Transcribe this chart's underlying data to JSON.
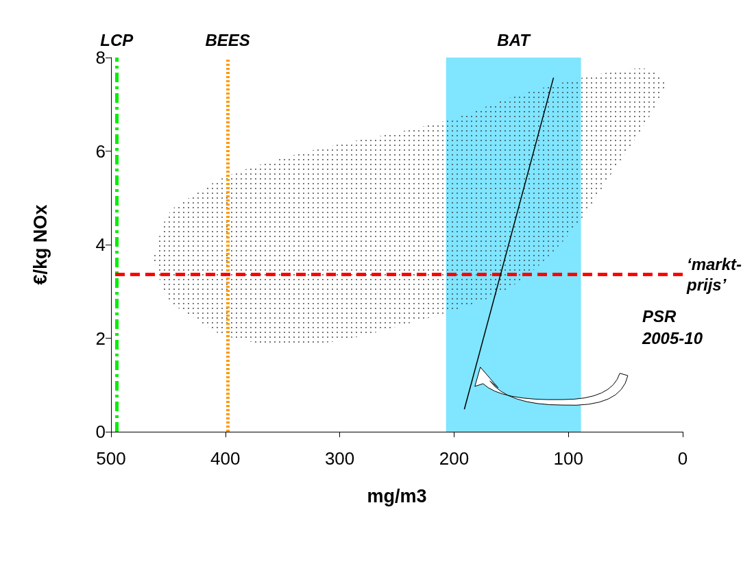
{
  "chart_data": {
    "type": "line",
    "xlabel": "mg/m3",
    "ylabel": "€/kg NOx",
    "x": [
      191,
      113
    ],
    "series": [
      {
        "color": "#000000",
        "values": [
          0.48,
          7.57
        ]
      },
      {
        "type": "area",
        "color": "#333333",
        "x": [
          463,
          450,
          425,
          400,
          350,
          300,
          250,
          200,
          150,
          100,
          60,
          30,
          14
        ],
        "values": [
          null,
          null,
          null,
          null,
          null,
          null,
          null,
          null,
          null,
          null,
          null,
          null,
          null
        ],
        "lower": [
          3.7,
          2.85,
          2.4,
          2.05,
          1.85,
          1.95,
          2.25,
          2.6,
          3.1,
          4.2,
          5.6,
          6.7,
          7.45
        ],
        "upper": [
          3.7,
          4.65,
          5.1,
          5.45,
          5.85,
          6.15,
          6.4,
          6.7,
          7.15,
          7.5,
          7.7,
          7.75,
          7.45
        ]
      }
    ],
    "marker": "none",
    "xlim": [
      500,
      0
    ],
    "xticks": [
      500,
      400,
      300,
      200,
      100,
      0
    ],
    "ylim": [
      0,
      8
    ],
    "yticks": [
      0,
      2,
      4,
      6,
      8
    ],
    "grid": false,
    "ref_lines": [
      {
        "axis": "x",
        "value": 495,
        "label": "LCP",
        "color": "#00ee00",
        "line_style": "dashdot"
      },
      {
        "axis": "x",
        "value": 398,
        "label": "BEES",
        "color": "#ff9900",
        "line_style": "dotted"
      },
      {
        "axis": "y",
        "value": 3.36,
        "label": "‘markt-\nprijs’",
        "color": "#ff0000",
        "line_style": "dashed"
      }
    ],
    "bands": [
      {
        "axis": "x",
        "from": 207,
        "to": 89,
        "label": "BAT",
        "color": "#80e5ff"
      }
    ],
    "annotations": [
      "PSR\n2005-10"
    ]
  }
}
